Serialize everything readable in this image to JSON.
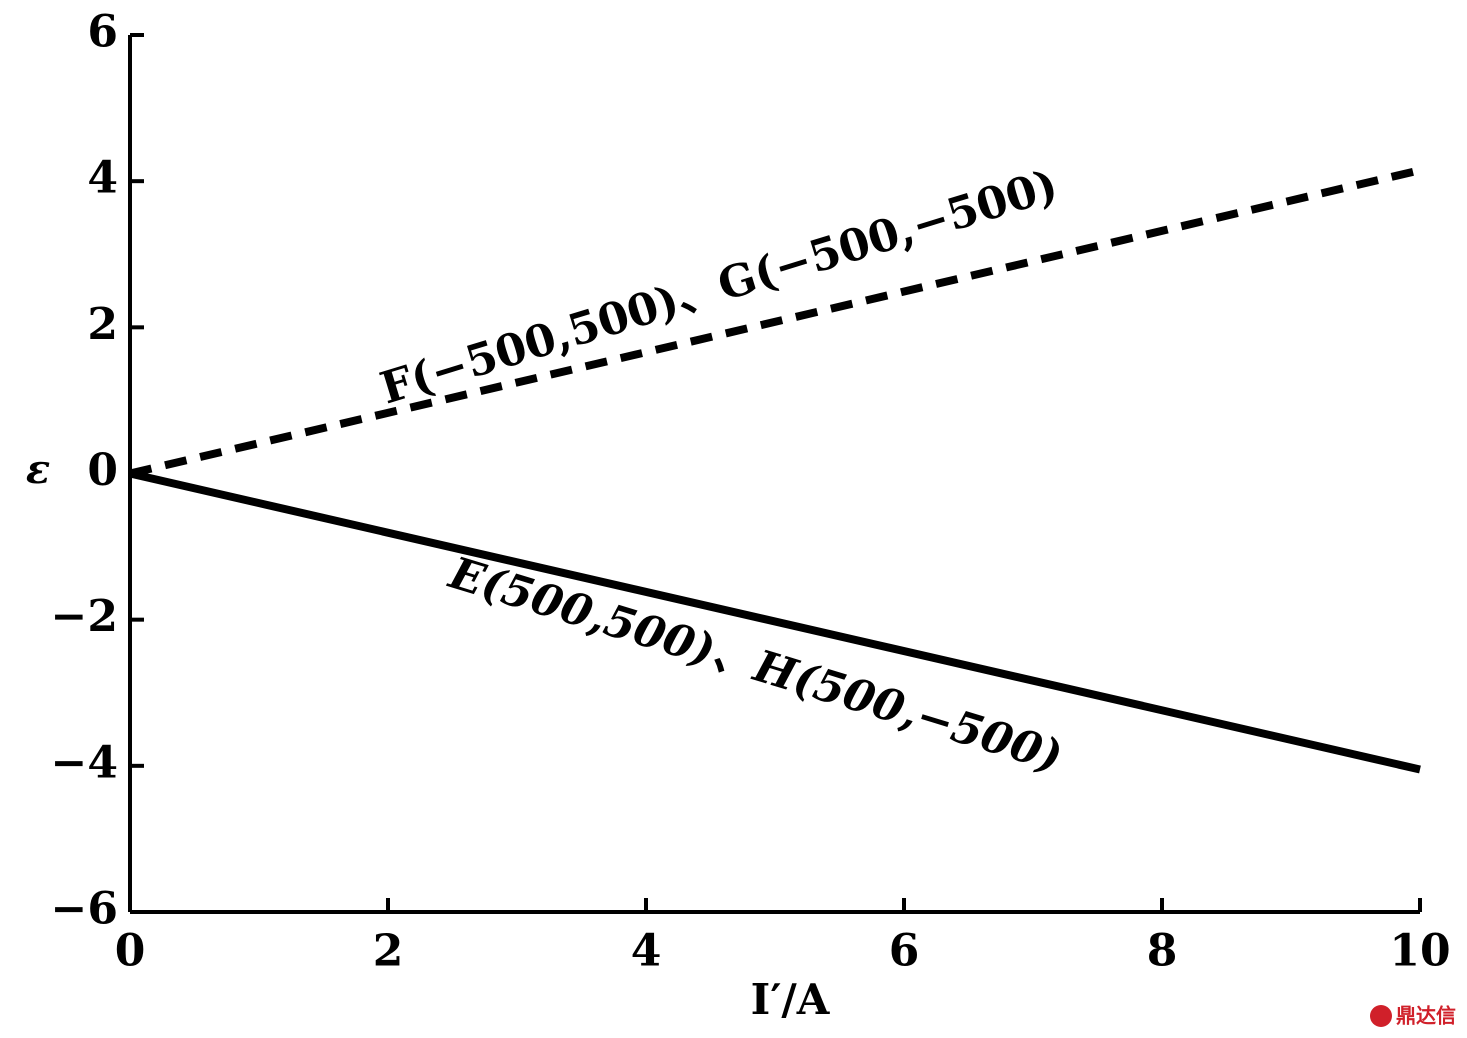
{
  "chart_data": {
    "type": "line",
    "x_label": "I′/A",
    "y_label": "ε",
    "x": [
      0,
      10
    ],
    "series": [
      {
        "name": "F(−500,500)、G(−500,−500)",
        "color": "#000000",
        "dash": true,
        "values": [
          0,
          4.15
        ]
      },
      {
        "name": "E(500,500)、H(500,−500)",
        "color": "#000000",
        "dash": false,
        "values": [
          0,
          -4.05
        ]
      }
    ],
    "xlim": [
      0,
      10
    ],
    "xticks": [
      0,
      2,
      4,
      6,
      8,
      10
    ],
    "ylim": [
      -6,
      6
    ],
    "yticks": [
      {
        "value": -6,
        "label": "−6"
      },
      {
        "value": -4,
        "label": "−4"
      },
      {
        "value": -2,
        "label": "−2"
      },
      0,
      2,
      4,
      6
    ],
    "grid": false,
    "watermark": "鼎达信"
  }
}
